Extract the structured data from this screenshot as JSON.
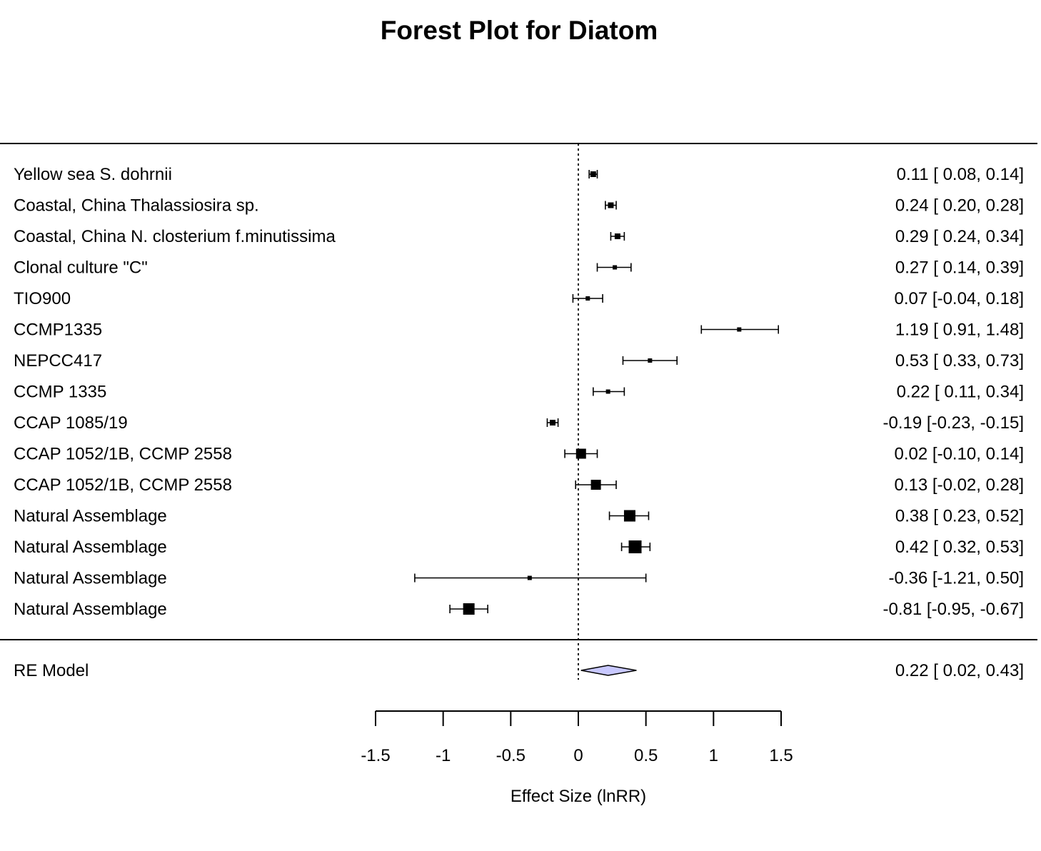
{
  "chart_data": {
    "type": "forest",
    "title": "Forest Plot for Diatom",
    "xlabel": "Effect Size (lnRR)",
    "xlim": [
      -1.5,
      1.5
    ],
    "ticks": [
      -1.5,
      -1,
      -0.5,
      0,
      0.5,
      1,
      1.5
    ],
    "tick_labels": [
      "-1.5",
      "-1",
      "-0.5",
      "0",
      "0.5",
      "1",
      "1.5"
    ],
    "reference_line": 0,
    "studies": [
      {
        "label": "Yellow sea S. dohrnii",
        "estimate": 0.11,
        "ci_lower": 0.08,
        "ci_upper": 0.14,
        "text": "0.11 [ 0.08,  0.14]",
        "weight": 2
      },
      {
        "label": "Coastal, China Thalassiosira sp.",
        "estimate": 0.24,
        "ci_lower": 0.2,
        "ci_upper": 0.28,
        "text": "0.24 [ 0.20,  0.28]",
        "weight": 2
      },
      {
        "label": "Coastal, China N. closterium f.minutissima",
        "estimate": 0.29,
        "ci_lower": 0.24,
        "ci_upper": 0.34,
        "text": "0.29 [ 0.24,  0.34]",
        "weight": 2
      },
      {
        "label": "Clonal culture \"C\"",
        "estimate": 0.27,
        "ci_lower": 0.14,
        "ci_upper": 0.39,
        "text": "0.27 [ 0.14,  0.39]",
        "weight": 1
      },
      {
        "label": "TIO900",
        "estimate": 0.07,
        "ci_lower": -0.04,
        "ci_upper": 0.18,
        "text": "0.07 [-0.04,  0.18]",
        "weight": 1
      },
      {
        "label": "CCMP1335",
        "estimate": 1.19,
        "ci_lower": 0.91,
        "ci_upper": 1.48,
        "text": "1.19 [ 0.91,  1.48]",
        "weight": 1
      },
      {
        "label": "NEPCC417",
        "estimate": 0.53,
        "ci_lower": 0.33,
        "ci_upper": 0.73,
        "text": "0.53 [ 0.33,  0.73]",
        "weight": 1
      },
      {
        "label": "CCMP 1335",
        "estimate": 0.22,
        "ci_lower": 0.11,
        "ci_upper": 0.34,
        "text": "0.22 [ 0.11,  0.34]",
        "weight": 1
      },
      {
        "label": "CCAP 1085/19",
        "estimate": -0.19,
        "ci_lower": -0.23,
        "ci_upper": -0.15,
        "text": "-0.19 [-0.23, -0.15]",
        "weight": 2
      },
      {
        "label": "CCAP 1052/1B, CCMP 2558",
        "estimate": 0.02,
        "ci_lower": -0.1,
        "ci_upper": 0.14,
        "text": "0.02 [-0.10,  0.14]",
        "weight": 5
      },
      {
        "label": "CCAP 1052/1B, CCMP 2558",
        "estimate": 0.13,
        "ci_lower": -0.02,
        "ci_upper": 0.28,
        "text": "0.13 [-0.02,  0.28]",
        "weight": 5
      },
      {
        "label": "Natural Assemblage",
        "estimate": 0.38,
        "ci_lower": 0.23,
        "ci_upper": 0.52,
        "text": "0.38 [ 0.23,  0.52]",
        "weight": 6
      },
      {
        "label": "Natural Assemblage",
        "estimate": 0.42,
        "ci_lower": 0.32,
        "ci_upper": 0.53,
        "text": "0.42 [ 0.32,  0.53]",
        "weight": 7
      },
      {
        "label": "Natural Assemblage",
        "estimate": -0.36,
        "ci_lower": -1.21,
        "ci_upper": 0.5,
        "text": "-0.36 [-1.21,  0.50]",
        "weight": 1
      },
      {
        "label": "Natural Assemblage",
        "estimate": -0.81,
        "ci_lower": -0.95,
        "ci_upper": -0.67,
        "text": "-0.81 [-0.95, -0.67]",
        "weight": 6
      }
    ],
    "summary": {
      "label": "RE Model",
      "estimate": 0.22,
      "ci_lower": 0.02,
      "ci_upper": 0.43,
      "text": "0.22 [ 0.02,  0.43]",
      "color": "#c8c8ff"
    }
  }
}
